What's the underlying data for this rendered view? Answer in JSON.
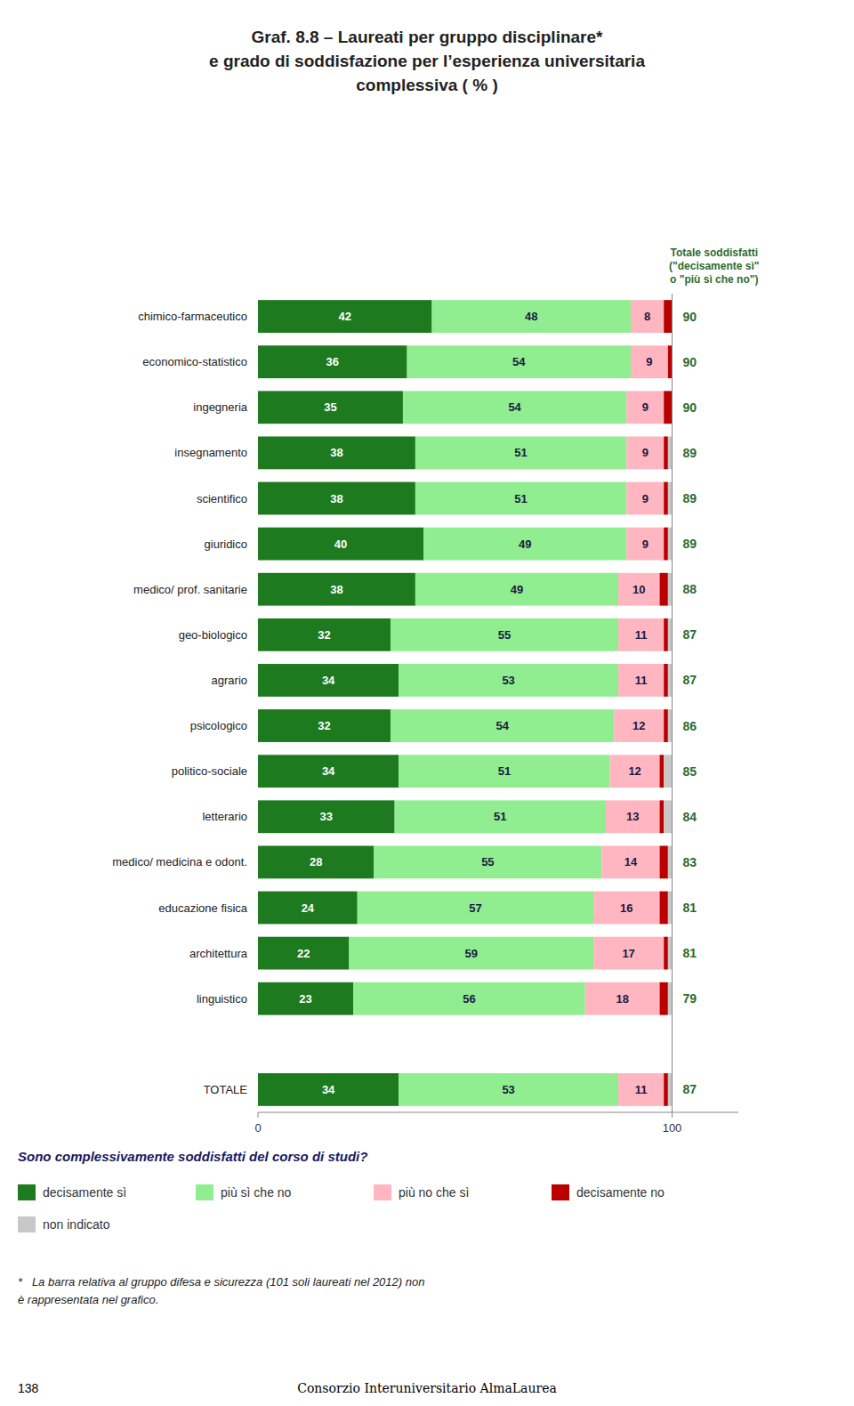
{
  "chart_data": {
    "type": "bar",
    "orientation": "horizontal",
    "stacked": true,
    "title": [
      "Graf. 8.8 – Laureati per gruppo disciplinare*",
      "e grado di soddisfazione per l’esperienza universitaria",
      "complessiva ( % )"
    ],
    "categories": [
      "chimico-farmaceutico",
      "economico-statistico",
      "ingegneria",
      "insegnamento",
      "scientifico",
      "giuridico",
      "medico/ prof. sanitarie",
      "geo-biologico",
      "agrario",
      "psicologico",
      "politico-sociale",
      "letterario",
      "medico/ medicina e odont.",
      "educazione fisica",
      "architettura",
      "linguistico",
      null,
      "TOTALE"
    ],
    "series": [
      {
        "name": "decisamente sì",
        "color": "#1e7a1e",
        "data_labels": true,
        "values": [
          42,
          36,
          35,
          38,
          38,
          40,
          38,
          32,
          34,
          32,
          34,
          33,
          28,
          24,
          22,
          23,
          null,
          34
        ]
      },
      {
        "name": "più sì che no",
        "color": "#90ee90",
        "data_labels": true,
        "values": [
          48,
          54,
          54,
          51,
          51,
          49,
          49,
          55,
          53,
          54,
          51,
          51,
          55,
          57,
          59,
          56,
          null,
          53
        ]
      },
      {
        "name": "più no che sì",
        "color": "#ffb6c1",
        "data_labels": true,
        "values": [
          8,
          9,
          9,
          9,
          9,
          9,
          10,
          11,
          11,
          12,
          12,
          13,
          14,
          16,
          17,
          18,
          null,
          11
        ]
      },
      {
        "name": "decisamente no",
        "color": "#bb0000",
        "data_labels": false,
        "values": [
          2,
          1,
          2,
          1,
          1,
          1,
          2,
          1,
          1,
          1,
          1,
          1,
          2,
          2,
          1,
          2,
          null,
          1
        ]
      },
      {
        "name": "non indicato",
        "color": "#c8c8c8",
        "data_labels": false,
        "values": [
          0,
          0,
          0,
          1,
          1,
          1,
          1,
          1,
          1,
          1,
          2,
          2,
          1,
          1,
          1,
          1,
          null,
          1
        ]
      }
    ],
    "xlim": [
      0,
      116
    ],
    "xticks": [
      0,
      100
    ],
    "grid": false,
    "legend": "bottom",
    "tick_labels": "x",
    "separator": 100,
    "totals": {
      "label": [
        "Totale soddisfatti",
        "(\"decisamente sì\"",
        "o \"più sì che no\")"
      ],
      "values": [
        90,
        90,
        90,
        89,
        89,
        89,
        88,
        87,
        87,
        86,
        85,
        84,
        83,
        81,
        81,
        79,
        null,
        87
      ]
    },
    "question": "Sono complessivamente soddisfatti del corso di studi?",
    "footnote": [
      "*   La barra relativa al gruppo difesa e sicurezza (101 soli laureati nel 2012) non",
      "è rappresentata nel grafico."
    ],
    "footer": [
      "138",
      "Consorzio Interuniversitario AlmaLaurea"
    ]
  }
}
